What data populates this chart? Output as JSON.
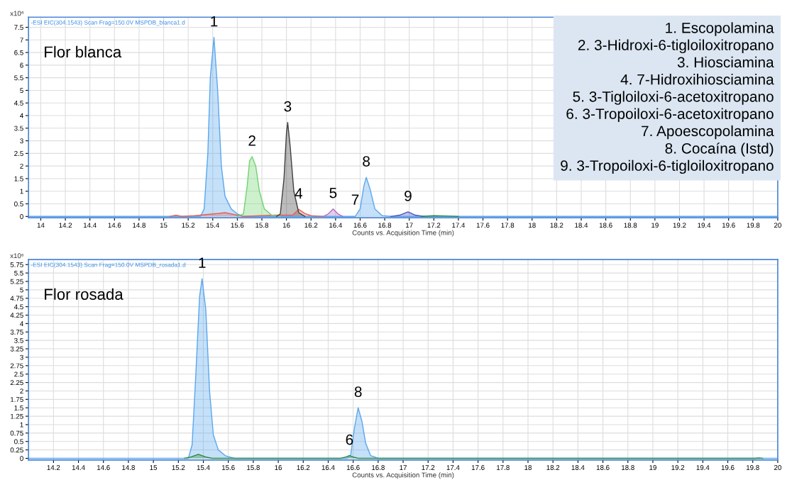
{
  "chart_data": [
    {
      "type": "area",
      "title": "Flor blanca",
      "subtitle": "-ESI EIC(304.1543) Scan Frag=150.0V MSPDB_blanca1.d",
      "xlabel": "Counts vs. Acquisition Time (min)",
      "ylabel": "x10⁶",
      "xlim": [
        13.9,
        20.0
      ],
      "xticks": [
        14,
        14.2,
        14.4,
        14.6,
        14.8,
        15,
        15.2,
        15.4,
        15.6,
        15.8,
        16,
        16.2,
        16.4,
        16.6,
        16.8,
        17,
        17.2,
        17.4,
        17.6,
        17.8,
        18,
        18.2,
        18.4,
        18.6,
        18.8,
        19,
        19.2,
        19.4,
        19.6,
        19.8,
        20
      ],
      "ylim": [
        -0.05,
        7.9
      ],
      "yticks": [
        0,
        0.5,
        1,
        1.5,
        2,
        2.5,
        3,
        3.5,
        4,
        4.5,
        5,
        5.5,
        6,
        6.5,
        7,
        7.5
      ],
      "grid": true,
      "series": [
        {
          "color": "#5aa7ee",
          "x": [
            13.9,
            15.3,
            15.33,
            15.36,
            15.38,
            15.41,
            15.44,
            15.47,
            15.5,
            15.55,
            15.6,
            15.65,
            16.5,
            16.56,
            16.6,
            16.63,
            16.65,
            16.68,
            16.72,
            16.78,
            16.85,
            20.0
          ],
          "values": [
            0,
            0,
            0.3,
            2.5,
            5.5,
            7.1,
            5.0,
            2.0,
            0.8,
            0.3,
            0.1,
            0,
            0,
            0,
            0.3,
            1.2,
            1.55,
            1.1,
            0.3,
            0.03,
            0,
            0
          ]
        },
        {
          "color": "#e0625a",
          "x": [
            15.05,
            15.1,
            15.15,
            15.25,
            15.45,
            15.5,
            15.55,
            15.65,
            15.9,
            16.05,
            16.1,
            16.15,
            16.2,
            16.3
          ],
          "values": [
            0,
            0.05,
            0,
            0.03,
            0.12,
            0.15,
            0.1,
            0,
            0.05,
            0.05,
            0.28,
            0.12,
            0.03,
            0
          ]
        },
        {
          "color": "#6fd36f",
          "x": [
            15.6,
            15.65,
            15.68,
            15.7,
            15.72,
            15.75,
            15.78,
            15.82,
            15.88,
            15.95
          ],
          "values": [
            0,
            0.1,
            1.2,
            2.2,
            2.37,
            2.0,
            1.0,
            0.3,
            0.05,
            0
          ]
        },
        {
          "color": "#404040",
          "x": [
            15.92,
            15.95,
            15.98,
            16.0,
            16.01,
            16.03,
            16.06,
            16.1,
            16.15
          ],
          "values": [
            0,
            0.1,
            1.5,
            3.3,
            3.73,
            2.8,
            1.0,
            0.15,
            0
          ]
        },
        {
          "color": "#b070c0",
          "x": [
            16.3,
            16.34,
            16.38,
            16.42,
            16.46
          ],
          "values": [
            0,
            0.1,
            0.3,
            0.1,
            0
          ]
        },
        {
          "color": "#5050c0",
          "x": [
            16.85,
            16.92,
            16.99,
            17.05,
            17.12
          ],
          "values": [
            0,
            0.05,
            0.18,
            0.05,
            0
          ]
        },
        {
          "color": "#2a8a3a",
          "x": [
            17.1,
            17.2,
            17.3,
            17.4
          ],
          "values": [
            0,
            0.03,
            0.02,
            0
          ]
        }
      ],
      "annotations": [
        "1. Escopolamina",
        "2. 3-Hidroxi-6-tigloiloxitropano",
        "3. Hiosciamina",
        "4. 7-Hidroxihiosciamina",
        "5. 3-Tigloiloxi-6-acetoxitropano",
        "6. 3-Tropoiloxi-6-acetoxitropano",
        "7. Apoescopolamina",
        "8. Cocaína (Istd)",
        "9. 3-Tropoiloxi-6-tigloiloxitropano",
        {
          "text": "1",
          "x": 15.41,
          "y": 7.1
        },
        {
          "text": "2",
          "x": 15.72,
          "y": 2.37
        },
        {
          "text": "3",
          "x": 16.01,
          "y": 3.73
        },
        {
          "text": "4",
          "x": 16.1,
          "y": 0.28
        },
        {
          "text": "5",
          "x": 16.38,
          "y": 0.3
        },
        {
          "text": "7",
          "x": 16.56,
          "y": 0.03
        },
        {
          "text": "8",
          "x": 16.65,
          "y": 1.55
        },
        {
          "text": "9",
          "x": 16.99,
          "y": 0.18
        }
      ]
    },
    {
      "type": "area",
      "title": "Flor rosada",
      "subtitle": "-ESI EIC(304.1543) Scan Frag=150.0V MSPDB_rosada1.d",
      "xlabel": "Counts vs. Acquisition Time (min)",
      "ylabel": "x10⁶",
      "xlim": [
        14.0,
        20.0
      ],
      "xticks": [
        14.2,
        14.4,
        14.6,
        14.8,
        15,
        15.2,
        15.4,
        15.6,
        15.8,
        16,
        16.2,
        16.4,
        16.6,
        16.8,
        17,
        17.2,
        17.4,
        17.6,
        17.8,
        18,
        18.2,
        18.4,
        18.6,
        18.8,
        19,
        19.2,
        19.4,
        19.6,
        19.8,
        20
      ],
      "ylim": [
        -0.05,
        5.9
      ],
      "yticks": [
        0,
        0.25,
        0.5,
        0.75,
        1,
        1.25,
        1.5,
        1.75,
        2,
        2.25,
        2.5,
        2.75,
        3,
        3.25,
        3.5,
        3.75,
        4,
        4.25,
        4.5,
        4.75,
        5,
        5.25,
        5.5,
        5.75
      ],
      "grid": true,
      "series": [
        {
          "color": "#5aa7ee",
          "x": [
            14.0,
            15.28,
            15.31,
            15.34,
            15.37,
            15.39,
            15.42,
            15.45,
            15.48,
            15.52,
            15.58,
            15.65,
            16.55,
            16.58,
            16.61,
            16.64,
            16.67,
            16.7,
            16.74,
            16.8,
            20.0
          ],
          "values": [
            0,
            0,
            0.4,
            2.5,
            4.8,
            5.33,
            4.4,
            2.0,
            0.7,
            0.25,
            0.07,
            0,
            0,
            0.1,
            0.9,
            1.5,
            1.1,
            0.45,
            0.08,
            0,
            0
          ]
        },
        {
          "color": "#2a8a3a",
          "x": [
            15.25,
            15.3,
            15.36,
            15.42,
            15.47,
            16.5,
            16.54,
            16.57,
            16.6,
            16.64,
            19.82,
            19.85,
            19.88
          ],
          "values": [
            0,
            0.04,
            0.12,
            0.04,
            0,
            0,
            0.04,
            0.08,
            0.04,
            0,
            0,
            0.01,
            0
          ]
        }
      ],
      "annotations": [
        {
          "text": "1",
          "x": 15.39,
          "y": 5.33
        },
        {
          "text": "6",
          "x": 16.57,
          "y": 0.08
        },
        {
          "text": "8",
          "x": 16.64,
          "y": 1.5
        }
      ]
    }
  ]
}
